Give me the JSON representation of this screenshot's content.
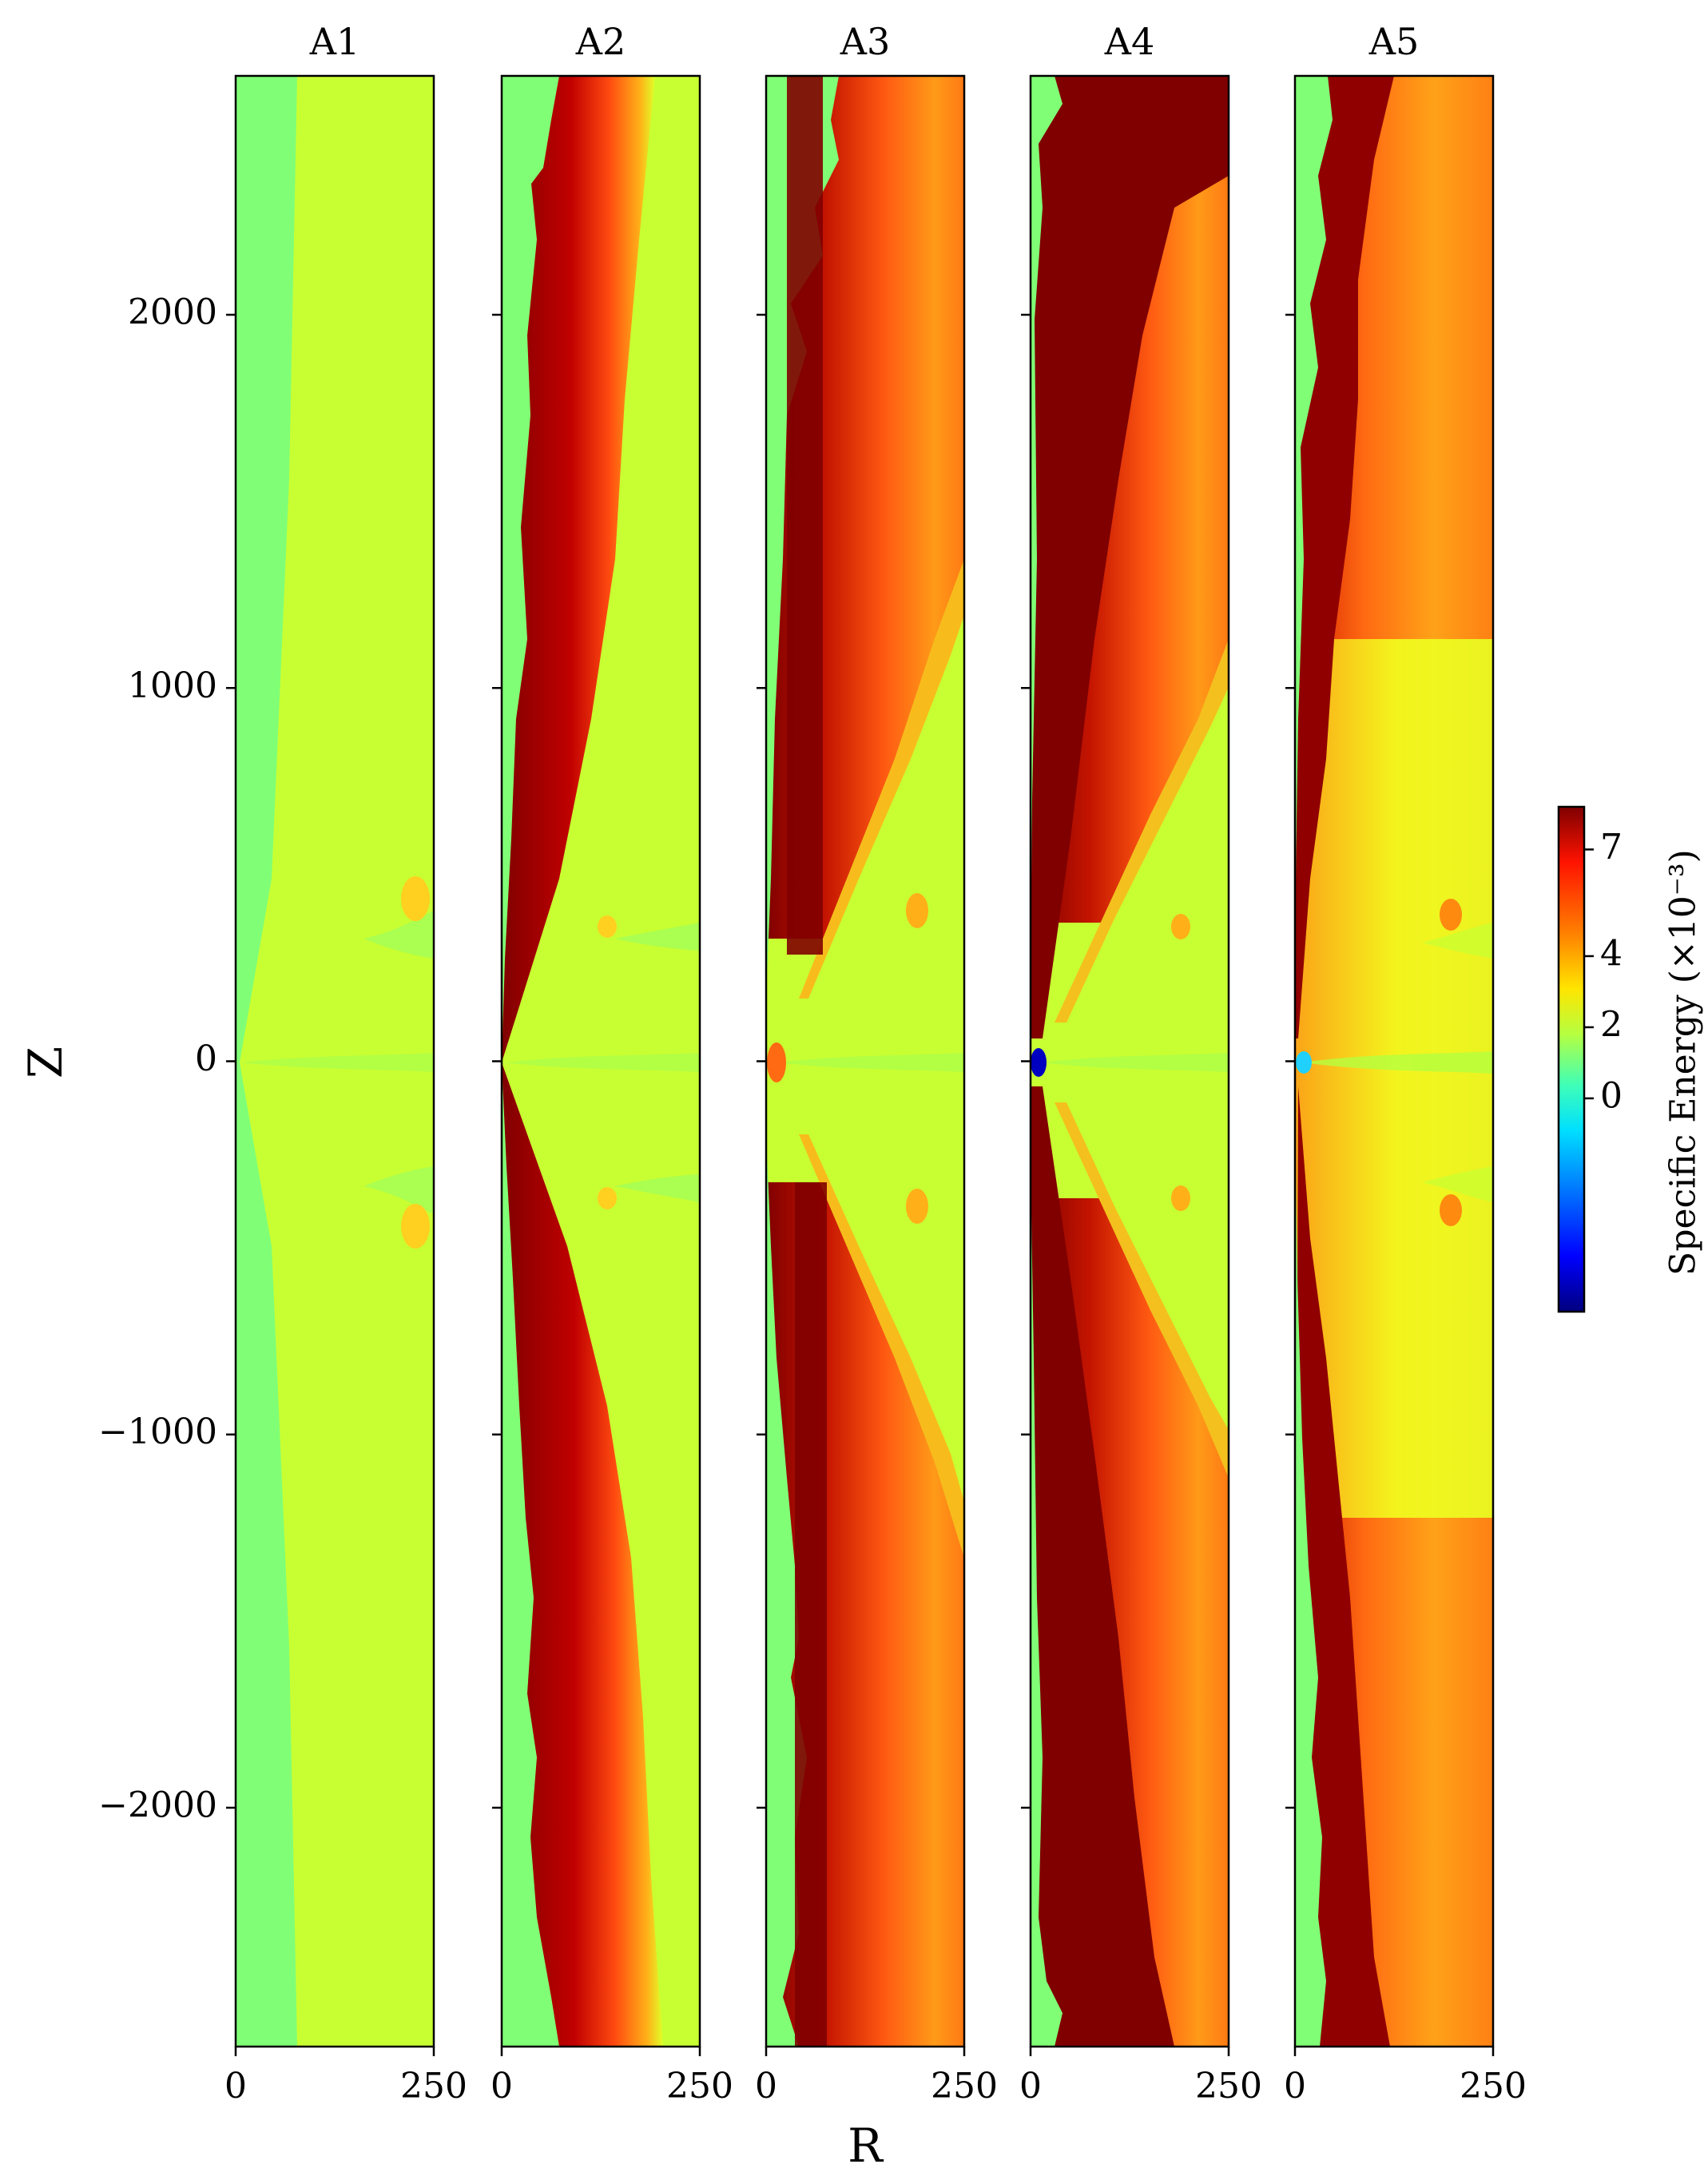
{
  "chart_data": {
    "type": "heatmap",
    "panels": [
      {
        "title": "A1",
        "xlim": [
          0,
          250
        ],
        "xticks": [
          "0",
          "250"
        ]
      },
      {
        "title": "A2",
        "xlim": [
          0,
          250
        ],
        "xticks": [
          "0",
          "250"
        ]
      },
      {
        "title": "A3",
        "xlim": [
          0,
          250
        ],
        "xticks": [
          "0",
          "250"
        ]
      },
      {
        "title": "A4",
        "xlim": [
          0,
          250
        ],
        "xticks": [
          "0",
          "250"
        ]
      },
      {
        "title": "A5",
        "xlim": [
          0,
          250
        ],
        "xticks": [
          "0",
          "250"
        ]
      }
    ],
    "xlabel": "R",
    "ylabel": "Z",
    "ylim": [
      -2640,
      2640
    ],
    "yticks": [
      {
        "value": 2000,
        "label": "2000"
      },
      {
        "value": 1000,
        "label": "1000"
      },
      {
        "value": 0,
        "label": "0"
      },
      {
        "value": -1000,
        "label": "−1000"
      },
      {
        "value": -2000,
        "label": "−2000"
      }
    ],
    "colorbar": {
      "label": "Specific Energy (×10⁻³)",
      "colormap": "jet",
      "range": [
        -6,
        8.2
      ],
      "ticks": [
        {
          "value": 7,
          "label": "7"
        },
        {
          "value": 4,
          "label": "4"
        },
        {
          "value": 2,
          "label": "2"
        },
        {
          "value": 0,
          "label": "0"
        }
      ]
    },
    "colors": {
      "ambient_green": "#80ff76",
      "interior_yellow_green": "#c8ff32",
      "dark_red": "#800000",
      "red": "#e8200c",
      "orange": "#ff8a10",
      "yellow": "#f6ff1c"
    }
  }
}
